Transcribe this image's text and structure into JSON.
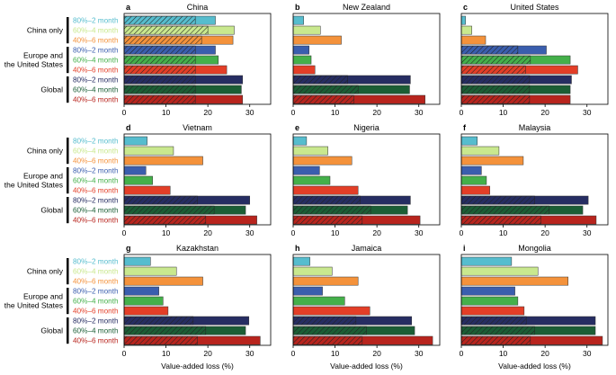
{
  "figure": {
    "xlabel": "Value-added loss (%)",
    "groups": [
      "China only",
      "Europe and\nthe United States",
      "Global"
    ],
    "scenarios": [
      "80%–2 month",
      "60%–4 month",
      "40%–6 month"
    ],
    "colors": {
      "China only": [
        "#56bdce",
        "#c9e88e",
        "#f4923b"
      ],
      "Europe and\nthe United States": [
        "#3a5eae",
        "#44b04a",
        "#e33e27"
      ],
      "Global": [
        "#262d62",
        "#1b5e35",
        "#b8241d"
      ]
    }
  },
  "chart_data": [
    {
      "panel": "a",
      "title": "China",
      "type": "bar",
      "xlim": [
        0,
        35
      ],
      "xticks": [
        0,
        10,
        20,
        30
      ],
      "values": [
        21.8,
        26.3,
        26.0,
        21.8,
        22.5,
        24.5,
        28.3,
        28.0,
        28.3
      ],
      "hatched": [
        17,
        20,
        18.5,
        17,
        17,
        17,
        17,
        17,
        17
      ]
    },
    {
      "panel": "b",
      "title": "New Zealand",
      "type": "bar",
      "xlim": [
        0,
        35
      ],
      "xticks": [
        0,
        10,
        20,
        30
      ],
      "values": [
        2.5,
        6.5,
        11.5,
        3.8,
        4.3,
        5.2,
        28.0,
        27.8,
        31.5
      ],
      "hatched": [
        0,
        0,
        0,
        0,
        0,
        0,
        13,
        15.5,
        14.5
      ]
    },
    {
      "panel": "c",
      "title": "United States",
      "type": "bar",
      "xlim": [
        0,
        35
      ],
      "xticks": [
        0,
        10,
        20,
        30
      ],
      "values": [
        1.0,
        2.5,
        5.8,
        20.3,
        26.0,
        27.8,
        26.3,
        26.0,
        26.0
      ],
      "hatched": [
        0,
        0,
        0,
        13.5,
        16.5,
        15.3,
        16.3,
        16.3,
        16.3
      ]
    },
    {
      "panel": "d",
      "title": "Vietnam",
      "type": "bar",
      "xlim": [
        0,
        35
      ],
      "xticks": [
        0,
        10,
        20,
        30
      ],
      "values": [
        5.5,
        11.8,
        18.8,
        5.2,
        6.8,
        11.0,
        30.0,
        29.0,
        31.7
      ],
      "hatched": [
        0,
        0,
        0,
        0,
        0,
        0,
        17.5,
        21.5,
        19.5
      ]
    },
    {
      "panel": "e",
      "title": "Nigeria",
      "type": "bar",
      "xlim": [
        0,
        35
      ],
      "xticks": [
        0,
        10,
        20,
        30
      ],
      "values": [
        3.2,
        8.3,
        14.0,
        6.3,
        8.8,
        15.5,
        28.0,
        27.3,
        30.3
      ],
      "hatched": [
        0,
        0,
        0,
        0,
        0,
        0,
        16,
        18.5,
        16.5
      ]
    },
    {
      "panel": "f",
      "title": "Malaysia",
      "type": "bar",
      "xlim": [
        0,
        35
      ],
      "xticks": [
        0,
        10,
        20,
        30
      ],
      "values": [
        3.8,
        9.0,
        14.8,
        4.8,
        6.0,
        6.8,
        30.3,
        29.0,
        32.2
      ],
      "hatched": [
        0,
        0,
        0,
        0,
        0,
        0,
        17.5,
        21.0,
        19.0
      ]
    },
    {
      "panel": "g",
      "title": "Kazakhstan",
      "type": "bar",
      "xlim": [
        0,
        35
      ],
      "xticks": [
        0,
        10,
        20,
        30
      ],
      "values": [
        6.3,
        12.5,
        18.8,
        8.3,
        9.3,
        10.5,
        29.8,
        29.0,
        32.5
      ],
      "hatched": [
        0,
        0,
        0,
        0,
        0,
        0,
        16.5,
        19.5,
        17.5
      ]
    },
    {
      "panel": "h",
      "title": "Jamaica",
      "type": "bar",
      "xlim": [
        0,
        35
      ],
      "xticks": [
        0,
        10,
        20,
        30
      ],
      "values": [
        4.0,
        9.3,
        15.5,
        7.0,
        12.3,
        18.3,
        28.3,
        29.0,
        33.3
      ],
      "hatched": [
        0,
        0,
        0,
        0,
        0,
        0,
        15,
        17.5,
        16.5
      ]
    },
    {
      "panel": "i",
      "title": "Mongolia",
      "type": "bar",
      "xlim": [
        0,
        35
      ],
      "xticks": [
        0,
        10,
        20,
        30
      ],
      "values": [
        12.0,
        18.3,
        25.5,
        12.8,
        13.5,
        15.0,
        32.0,
        32.0,
        33.7
      ],
      "hatched": [
        0,
        0,
        0,
        0,
        0,
        0,
        15.5,
        17.5,
        16.5
      ]
    }
  ]
}
